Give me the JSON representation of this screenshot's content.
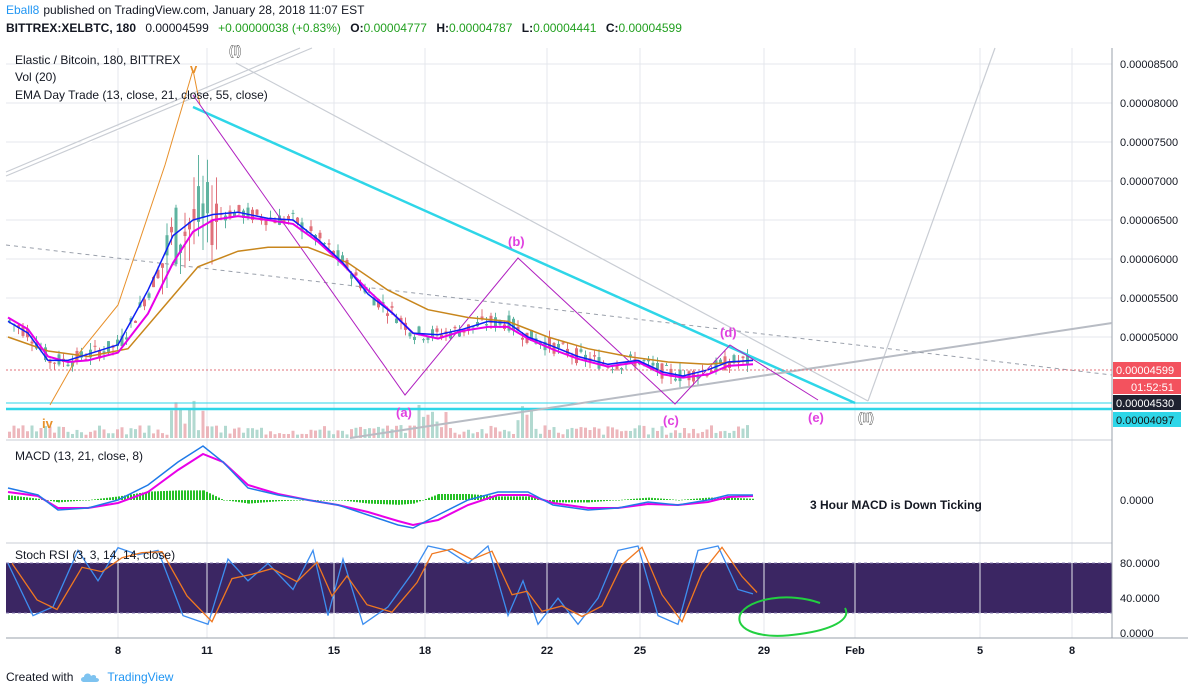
{
  "header": {
    "user": "Eball8",
    "published": "published on TradingView.com, January 28, 2018 11:07 EST",
    "symbol": "BITTREX:XELBTC, 180",
    "last": "0.00004599",
    "change": "+0.00000038 (+0.83%)",
    "o_label": "O:",
    "o": "0.00004777",
    "h_label": "H:",
    "h": "0.00004787",
    "l_label": "L:",
    "l": "0.00004441",
    "c_label": "C:",
    "c": "0.00004599"
  },
  "legend": {
    "title": "Elastic / Bitcoin, 180, BITTREX",
    "vol": "Vol (20)",
    "ema": "EMA Day Trade (13, close, 21, close, 55, close)"
  },
  "footer": {
    "created": "Created with",
    "brand": "TradingView"
  },
  "colors": {
    "ema_fast": "#0d1ff5",
    "ema_mid": "#e800e8",
    "ema_slow": "#c8861c",
    "cyan": "#2ed6e8",
    "up": "#5fb3a0",
    "down": "#e0707a",
    "stoch_bg": "#2a1356"
  },
  "chart_data": [
    {
      "type": "line",
      "title": "Elastic / Bitcoin, 180, BITTREX",
      "x_ticks": [
        "8",
        "11",
        "15",
        "18",
        "22",
        "25",
        "29",
        "Feb",
        "5",
        "8"
      ],
      "y_ticks": [
        "0.00008500",
        "0.00008000",
        "0.00007500",
        "0.00007000",
        "0.00006500",
        "0.00006000",
        "0.00005500",
        "0.00005000"
      ],
      "ylim": [
        3.9e-05,
        8.8e-05
      ],
      "price_labels": [
        {
          "text": "0.00004599",
          "kind": "last"
        },
        {
          "text": "01:52:51",
          "kind": "countdown"
        },
        {
          "text": "0.00004530",
          "kind": "level"
        },
        {
          "text": "0.00004097",
          "kind": "support"
        }
      ],
      "wave_labels": [
        "(I)",
        "v",
        "iv",
        "(a)",
        "(b)",
        "(c)",
        "(d)",
        "(e)",
        "(II)"
      ],
      "series": [
        {
          "name": "EMA 13",
          "points": [
            [
              0,
              5.2e-05
            ],
            [
              20,
              5.05e-05
            ],
            [
              40,
              4.7e-05
            ],
            [
              60,
              4.7e-05
            ],
            [
              80,
              4.78e-05
            ],
            [
              110,
              4.9e-05
            ],
            [
              140,
              5.6e-05
            ],
            [
              165,
              6.3e-05
            ],
            [
              185,
              6.5e-05
            ],
            [
              205,
              6.57e-05
            ],
            [
              230,
              6.6e-05
            ],
            [
              260,
              6.52e-05
            ],
            [
              285,
              6.5e-05
            ],
            [
              310,
              6.25e-05
            ],
            [
              335,
              5.95e-05
            ],
            [
              360,
              5.55e-05
            ],
            [
              385,
              5.3e-05
            ],
            [
              405,
              5.05e-05
            ],
            [
              430,
              5.03e-05
            ],
            [
              455,
              5.1e-05
            ],
            [
              480,
              5.2e-05
            ],
            [
              500,
              5.18e-05
            ],
            [
              520,
              5e-05
            ],
            [
              545,
              4.88e-05
            ],
            [
              570,
              4.75e-05
            ],
            [
              600,
              4.65e-05
            ],
            [
              630,
              4.7e-05
            ],
            [
              655,
              4.55e-05
            ],
            [
              675,
              4.5e-05
            ],
            [
              700,
              4.58e-05
            ],
            [
              720,
              4.68e-05
            ],
            [
              745,
              4.7e-05
            ]
          ]
        },
        {
          "name": "EMA 21",
          "points": [
            [
              0,
              5.25e-05
            ],
            [
              20,
              5.1e-05
            ],
            [
              40,
              4.75e-05
            ],
            [
              60,
              4.68e-05
            ],
            [
              80,
              4.7e-05
            ],
            [
              110,
              4.8e-05
            ],
            [
              140,
              5.3e-05
            ],
            [
              165,
              5.95e-05
            ],
            [
              185,
              6.35e-05
            ],
            [
              205,
              6.5e-05
            ],
            [
              230,
              6.55e-05
            ],
            [
              260,
              6.5e-05
            ],
            [
              285,
              6.45e-05
            ],
            [
              310,
              6.22e-05
            ],
            [
              335,
              5.93e-05
            ],
            [
              360,
              5.6e-05
            ],
            [
              385,
              5.3e-05
            ],
            [
              405,
              5.05e-05
            ],
            [
              430,
              4.98e-05
            ],
            [
              455,
              5.08e-05
            ],
            [
              480,
              5.13e-05
            ],
            [
              500,
              5.13e-05
            ],
            [
              520,
              4.98e-05
            ],
            [
              545,
              4.84e-05
            ],
            [
              570,
              4.72e-05
            ],
            [
              600,
              4.62e-05
            ],
            [
              630,
              4.68e-05
            ],
            [
              655,
              4.52e-05
            ],
            [
              675,
              4.48e-05
            ],
            [
              700,
              4.52e-05
            ],
            [
              720,
              4.63e-05
            ],
            [
              745,
              4.65e-05
            ]
          ]
        },
        {
          "name": "EMA 55",
          "points": [
            [
              0,
              5e-05
            ],
            [
              40,
              4.82e-05
            ],
            [
              80,
              4.75e-05
            ],
            [
              120,
              4.85e-05
            ],
            [
              160,
              5.45e-05
            ],
            [
              190,
              5.9e-05
            ],
            [
              230,
              6.1e-05
            ],
            [
              260,
              6.15e-05
            ],
            [
              300,
              6.15e-05
            ],
            [
              340,
              5.95e-05
            ],
            [
              380,
              5.6e-05
            ],
            [
              420,
              5.35e-05
            ],
            [
              460,
              5.25e-05
            ],
            [
              500,
              5.2e-05
            ],
            [
              540,
              5e-05
            ],
            [
              580,
              4.85e-05
            ],
            [
              620,
              4.75e-05
            ],
            [
              660,
              4.68e-05
            ],
            [
              700,
              4.65e-05
            ],
            [
              745,
              4.7e-05
            ]
          ]
        }
      ]
    },
    {
      "type": "line",
      "title": "MACD (13, 21, close, 8)",
      "y_ticks": [
        "0.0000"
      ],
      "annotation": "3 Hour MACD is Down Ticking"
    },
    {
      "type": "line",
      "title": "Stoch RSI (3, 3, 14, 14, close)",
      "y_ticks": [
        "80.0000",
        "40.0000",
        "0.0000"
      ],
      "ylim": [
        0,
        100
      ]
    }
  ]
}
